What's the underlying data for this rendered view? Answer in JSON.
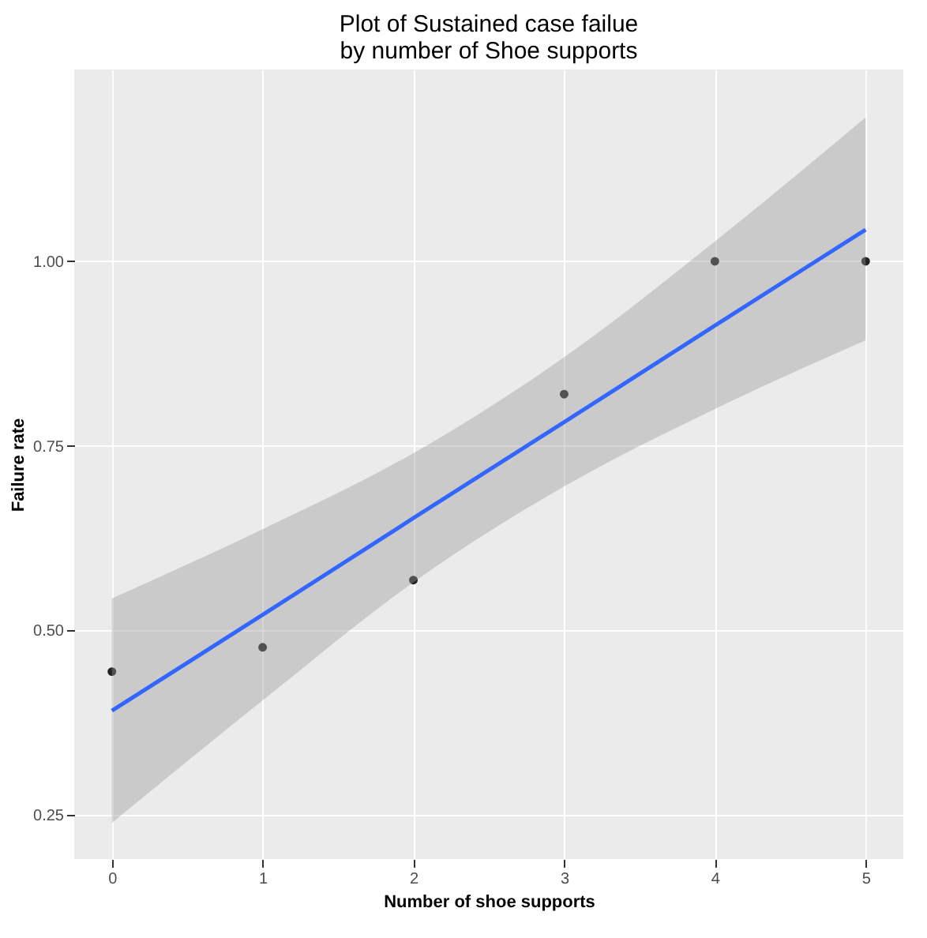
{
  "chart_data": {
    "type": "scatter",
    "title": "Plot of Sustained case failue\nby number of Shoe supports",
    "xlabel": "Number of shoe supports",
    "ylabel": "Failure rate",
    "x": [
      0,
      1,
      2,
      3,
      4,
      5
    ],
    "series": [
      {
        "color": "#222222",
        "marker": "circle",
        "values": [
          0.444,
          0.477,
          0.568,
          0.82,
          1.0,
          1.0
        ]
      },
      {
        "type": "line",
        "color": "#3366ff",
        "values": [
          0.391,
          0.521,
          0.652,
          0.782,
          0.913,
          1.043
        ],
        "lower": [
          0.239,
          0.405,
          0.565,
          0.695,
          0.8,
          0.893
        ],
        "upper": [
          0.543,
          0.637,
          0.74,
          0.87,
          1.027,
          1.195
        ]
      }
    ],
    "xlim": [
      -0.25,
      5.25
    ],
    "xticks": [
      0,
      1,
      2,
      3,
      4,
      5
    ],
    "ylim": [
      0.19,
      1.26
    ],
    "yticks": [
      {
        "value": 0.25,
        "label": "0.25"
      },
      {
        "value": 0.5,
        "label": "0.50"
      },
      {
        "value": 0.75,
        "label": "0.75"
      },
      {
        "value": 1.0,
        "label": "1.00"
      }
    ],
    "grid": true,
    "line_style": "solid"
  }
}
